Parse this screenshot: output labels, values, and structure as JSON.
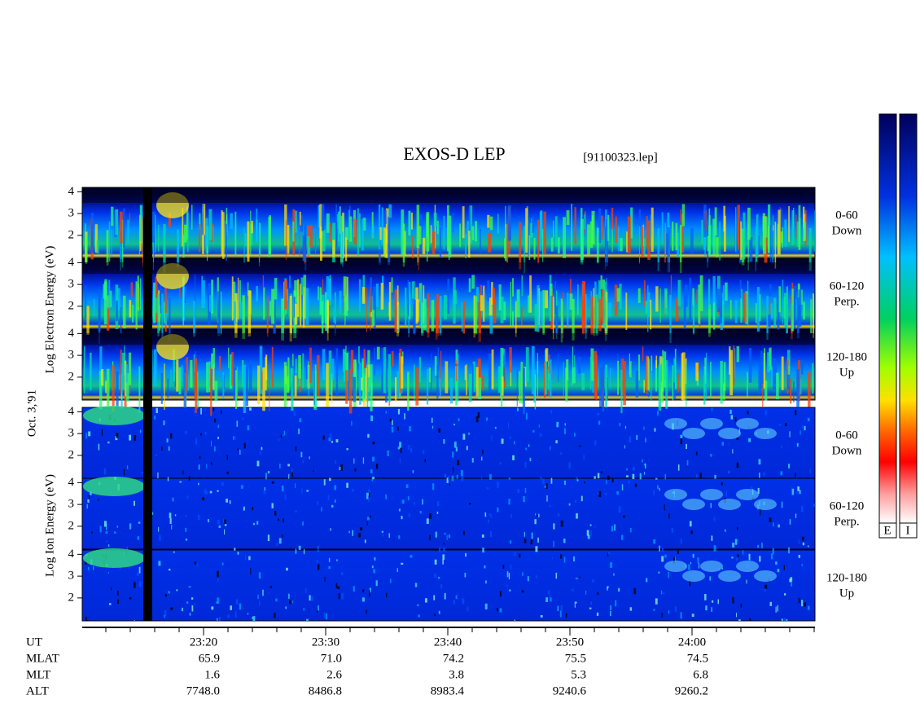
{
  "title": "EXOS-D LEP",
  "file": "[91100323.lep]",
  "date_label": "Oct. 3,'91",
  "electron_axis_label": "Log  Electron  Energy (eV)",
  "ion_axis_label": "Log  Ion  Energy (eV)",
  "panels": [
    {
      "species": "electron",
      "angle": "0-60",
      "direction": "Down",
      "ylim": [
        0.95,
        4.2
      ],
      "yticks": [
        2,
        3,
        4
      ]
    },
    {
      "species": "electron",
      "angle": "60-120",
      "direction": "Perp.",
      "ylim": [
        0.95,
        4.2
      ],
      "yticks": [
        2,
        3,
        4
      ]
    },
    {
      "species": "electron",
      "angle": "120-180",
      "direction": "Up",
      "ylim": [
        0.95,
        4.2
      ],
      "yticks": [
        2,
        3,
        4
      ]
    },
    {
      "species": "ion",
      "angle": "0-60",
      "direction": "Down",
      "ylim": [
        0.95,
        4.2
      ],
      "yticks": [
        2,
        3,
        4
      ]
    },
    {
      "species": "ion",
      "angle": "60-120",
      "direction": "Perp.",
      "ylim": [
        0.95,
        4.2
      ],
      "yticks": [
        2,
        3,
        4
      ]
    },
    {
      "species": "ion",
      "angle": "120-180",
      "direction": "Up",
      "ylim": [
        0.95,
        4.2
      ],
      "yticks": [
        2,
        3,
        4
      ]
    }
  ],
  "time_axis": {
    "rows": [
      {
        "name": "UT",
        "values": [
          "23:20",
          "23:30",
          "23:40",
          "23:50",
          "24:00"
        ]
      },
      {
        "name": "MLAT",
        "values": [
          "65.9",
          "71.0",
          "74.2",
          "75.5",
          "74.5"
        ]
      },
      {
        "name": "MLT",
        "values": [
          "1.6",
          "2.6",
          "3.8",
          "5.3",
          "6.8"
        ]
      },
      {
        "name": "ALT",
        "values": [
          "7748.0",
          "8486.8",
          "8983.4",
          "9240.6",
          "9260.2"
        ]
      }
    ]
  },
  "colorbar_labels": [
    "E",
    "I"
  ]
}
